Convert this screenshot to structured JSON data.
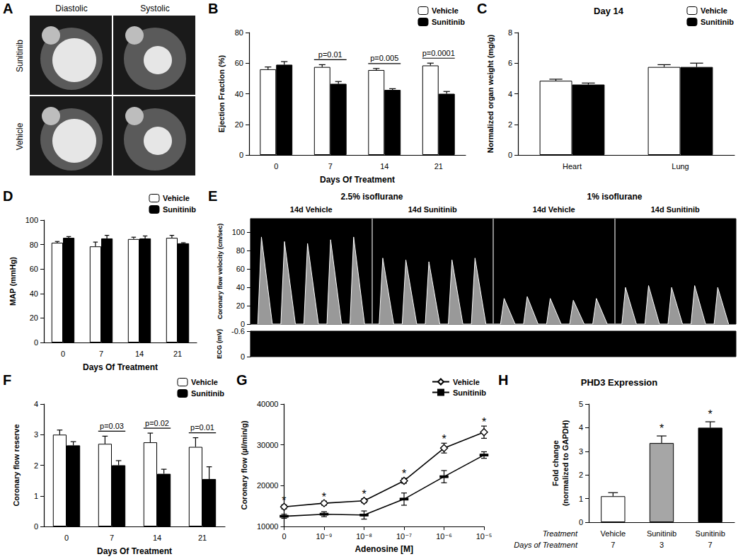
{
  "image_A": {
    "panel": "A",
    "columns": [
      "Diastolic",
      "Systolic"
    ],
    "rows": [
      "Sunitinib",
      "Vehicle"
    ]
  },
  "chart_data": [
    {
      "panel": "B",
      "type": "bar",
      "y_label": "Ejection Fraction (%)",
      "x_label": "Days Of Treatment",
      "categories": [
        "0",
        "7",
        "14",
        "21"
      ],
      "series": [
        {
          "name": "Vehicle",
          "color": "#ffffff",
          "values": [
            56,
            57.5,
            55.5,
            58.5
          ],
          "errors": [
            1.5,
            1.5,
            1,
            1.5
          ]
        },
        {
          "name": "Sunitinib",
          "color": "#000000",
          "values": [
            59,
            46.5,
            42.5,
            40
          ],
          "errors": [
            2,
            1.5,
            0.8,
            1.5
          ]
        }
      ],
      "ylim": [
        0,
        80
      ],
      "yticks": [
        0,
        20,
        40,
        60,
        80
      ],
      "annotations": [
        null,
        "p=0.01",
        "p=0.005",
        "p=0.0001"
      ],
      "legend": "upper right",
      "grid": false
    },
    {
      "panel": "C",
      "type": "bar",
      "title": "Day 14",
      "y_label": "Normalized organ weight (mg/g)",
      "categories": [
        "Heart",
        "Lung"
      ],
      "series": [
        {
          "name": "Vehicle",
          "color": "#ffffff",
          "values": [
            4.85,
            5.75
          ],
          "errors": [
            0.1,
            0.15
          ]
        },
        {
          "name": "Sunitinib",
          "color": "#000000",
          "values": [
            4.6,
            5.75
          ],
          "errors": [
            0.1,
            0.25
          ]
        }
      ],
      "ylim": [
        0,
        8
      ],
      "yticks": [
        0,
        2,
        4,
        6,
        8
      ],
      "legend": "upper right",
      "grid": false
    },
    {
      "panel": "D",
      "type": "bar",
      "y_label": "MAP (mmHg)",
      "x_label": "Days Of Treatment",
      "categories": [
        "0",
        "7",
        "14",
        "21"
      ],
      "series": [
        {
          "name": "Vehicle",
          "color": "#ffffff",
          "values": [
            81.5,
            78.5,
            84.5,
            85.5
          ],
          "errors": [
            1,
            3.5,
            1.5,
            2
          ]
        },
        {
          "name": "Sunitinib",
          "color": "#000000",
          "values": [
            85.5,
            85,
            85,
            81
          ],
          "errors": [
            1,
            2.5,
            2,
            0.5
          ]
        }
      ],
      "ylim": [
        0,
        100
      ],
      "yticks": [
        0,
        20,
        40,
        60,
        80,
        100
      ],
      "legend": "upper right",
      "grid": false
    },
    {
      "panel": "E",
      "type": "area",
      "y_label": "Coronary flow velocity (cm/sec)",
      "groups": [
        "2.5% isoflurane",
        "1% isoflurane"
      ],
      "panels": [
        "14d Vehicle",
        "14d Sunitinib",
        "14d Vehicle",
        "14d Sunitinib"
      ],
      "x": [
        0.06,
        0.09,
        0.18,
        0.25,
        0.28,
        0.37,
        0.44,
        0.47,
        0.56,
        0.63,
        0.66,
        0.75,
        0.82,
        0.85,
        0.94,
        1.06,
        1.09,
        1.18,
        1.25,
        1.28,
        1.37,
        1.44,
        1.47,
        1.56,
        1.63,
        1.66,
        1.75,
        1.82,
        1.85,
        1.94,
        2.06,
        2.09,
        2.18,
        2.25,
        2.28,
        2.37,
        2.44,
        2.47,
        2.56,
        2.63,
        2.66,
        2.75,
        2.82,
        2.85,
        2.94,
        3.06,
        3.09,
        3.18,
        3.25,
        3.28,
        3.37,
        3.44,
        3.47,
        3.56,
        3.63,
        3.66,
        3.75,
        3.82,
        3.85,
        3.94
      ],
      "values": [
        0,
        95,
        0,
        0,
        90,
        0,
        0,
        88,
        0,
        0,
        92,
        0,
        0,
        95,
        0,
        0,
        72,
        0,
        0,
        70,
        0,
        0,
        68,
        0,
        0,
        70,
        0,
        0,
        72,
        0,
        0,
        28,
        0,
        0,
        30,
        0,
        0,
        28,
        0,
        0,
        26,
        0,
        0,
        28,
        0,
        0,
        40,
        0,
        0,
        42,
        0,
        0,
        40,
        0,
        0,
        42,
        0,
        0,
        40,
        0
      ],
      "color": "#ffffff",
      "xlim": [
        0,
        4
      ],
      "ylim": [
        0,
        115
      ],
      "yticks": [
        0,
        20,
        40,
        60,
        80,
        100
      ],
      "tick_labels": "y",
      "y2_label": "ECG (mV)",
      "y2lim": [
        -0.6,
        0
      ],
      "y2ticks": [
        -0.6,
        0
      ]
    },
    {
      "panel": "F",
      "type": "bar",
      "y_label": "Coronary flow reserve",
      "x_label": "Days Of Treatment",
      "categories": [
        "0",
        "7",
        "14",
        "21"
      ],
      "series": [
        {
          "name": "Vehicle",
          "color": "#ffffff",
          "values": [
            3.0,
            2.7,
            2.75,
            2.6
          ],
          "errors": [
            0.15,
            0.25,
            0.3,
            0.3
          ]
        },
        {
          "name": "Sunitinib",
          "color": "#000000",
          "values": [
            2.65,
            2.0,
            1.72,
            1.55
          ],
          "errors": [
            0.12,
            0.15,
            0.15,
            0.4
          ]
        }
      ],
      "ylim": [
        0,
        4
      ],
      "yticks": [
        0,
        1,
        2,
        3,
        4
      ],
      "annotations": [
        null,
        "p=0.03",
        "p=0.02",
        "p=0.01"
      ],
      "legend": "upper right",
      "grid": false
    },
    {
      "panel": "G",
      "type": "line",
      "y_label": "Coronary flow (µl/min/g)",
      "x_label": "Adenosine [M]",
      "categories": [
        "0",
        "10⁻⁹",
        "10⁻⁸",
        "10⁻⁷",
        "10⁻⁶",
        "10⁻⁵"
      ],
      "series": [
        {
          "name": "Vehicle",
          "color": "#000000",
          "marker": "diamond",
          "values": [
            14800,
            15700,
            16300,
            21200,
            29200,
            33100
          ],
          "errors": [
            500,
            500,
            500,
            600,
            1200,
            1500
          ]
        },
        {
          "name": "Sunitinib",
          "color": "#000000",
          "marker": "dash",
          "values": [
            12500,
            13000,
            12800,
            16700,
            22200,
            27500
          ],
          "errors": [
            500,
            600,
            1000,
            1500,
            1500,
            800
          ]
        }
      ],
      "ylim": [
        10000,
        40000
      ],
      "yticks": [
        10000,
        20000,
        30000,
        40000
      ],
      "annotations": [
        "*",
        "*",
        "*",
        "*",
        "*",
        "*"
      ],
      "legend": "upper right",
      "grid": false
    },
    {
      "panel": "H",
      "type": "bar",
      "title": "PHD3 Expression",
      "y_label": "Fold change\n(normalized to GAPDH)",
      "categories": [
        "Vehicle",
        "Sunitinib",
        "Sunitinib"
      ],
      "days": [
        7,
        3,
        7
      ],
      "row_labels": [
        "Treatment",
        "Days of Treatment"
      ],
      "values": [
        1.1,
        3.35,
        4.0
      ],
      "errors": [
        0.15,
        0.3,
        0.25
      ],
      "colors": [
        "#ffffff",
        "#a6a6a6",
        "#000000"
      ],
      "ylim": [
        0,
        5
      ],
      "yticks": [
        0,
        1,
        2,
        3,
        4,
        5
      ],
      "annotations": [
        null,
        "*",
        "*"
      ],
      "grid": false
    }
  ]
}
